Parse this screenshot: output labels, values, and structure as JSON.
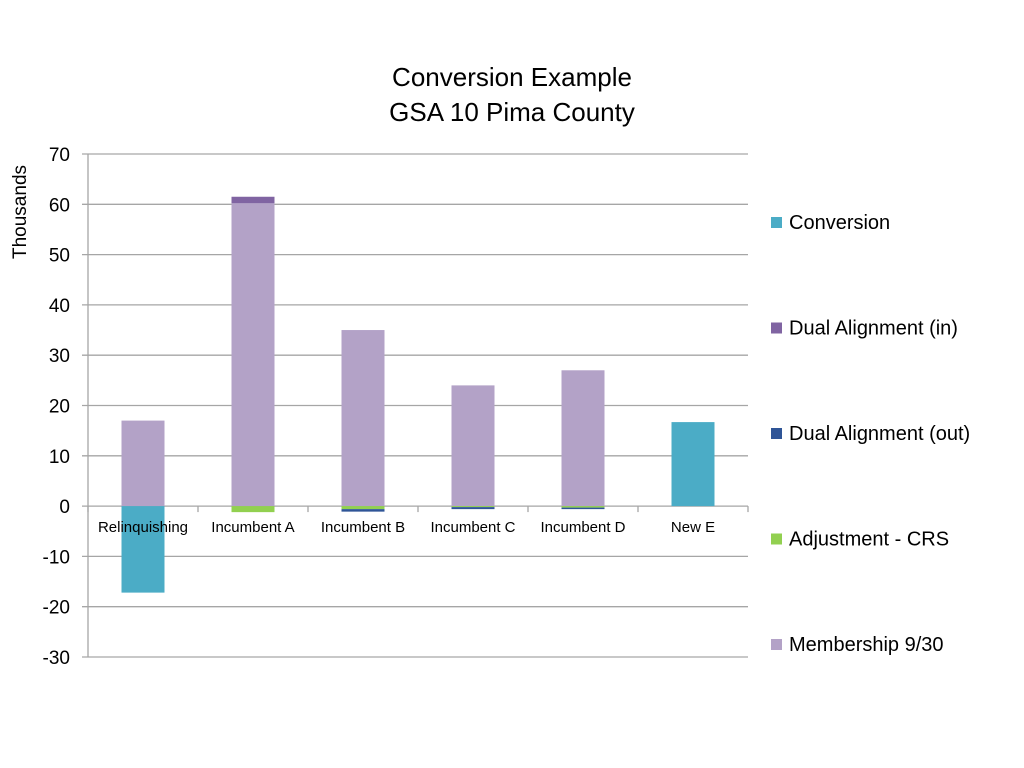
{
  "chart_data": {
    "type": "bar",
    "stacked": true,
    "title": [
      "Conversion Example",
      "GSA 10 Pima County"
    ],
    "ylabel": "Thousands",
    "xlabel": "",
    "ylim": [
      -30,
      70
    ],
    "yticks": [
      70,
      60,
      50,
      40,
      30,
      20,
      10,
      0,
      -10,
      -20,
      -30
    ],
    "grid": true,
    "legend_position": "right",
    "categories": [
      "Relinquishing",
      "Incumbent A",
      "Incumbent B",
      "Incumbent C",
      "Incumbent D",
      "New E"
    ],
    "series": [
      {
        "name": "Membership 9/30",
        "color": "#B3A2C7",
        "values": [
          17,
          60.2,
          35,
          24,
          27,
          0
        ]
      },
      {
        "name": "Adjustment - CRS",
        "color": "#92D050",
        "values": [
          0,
          -1.2,
          -0.6,
          -0.2,
          -0.3,
          0
        ]
      },
      {
        "name": "Dual Alignment (out)",
        "color": "#2F5597",
        "values": [
          0,
          0,
          -0.5,
          -0.4,
          -0.3,
          0
        ]
      },
      {
        "name": "Dual Alignment (in)",
        "color": "#8064A2",
        "values": [
          0,
          1.3,
          0,
          0,
          0,
          0
        ]
      },
      {
        "name": "Conversion",
        "color": "#4BACC6",
        "values": [
          -17.2,
          0,
          0,
          0,
          0,
          16.7
        ]
      }
    ]
  }
}
